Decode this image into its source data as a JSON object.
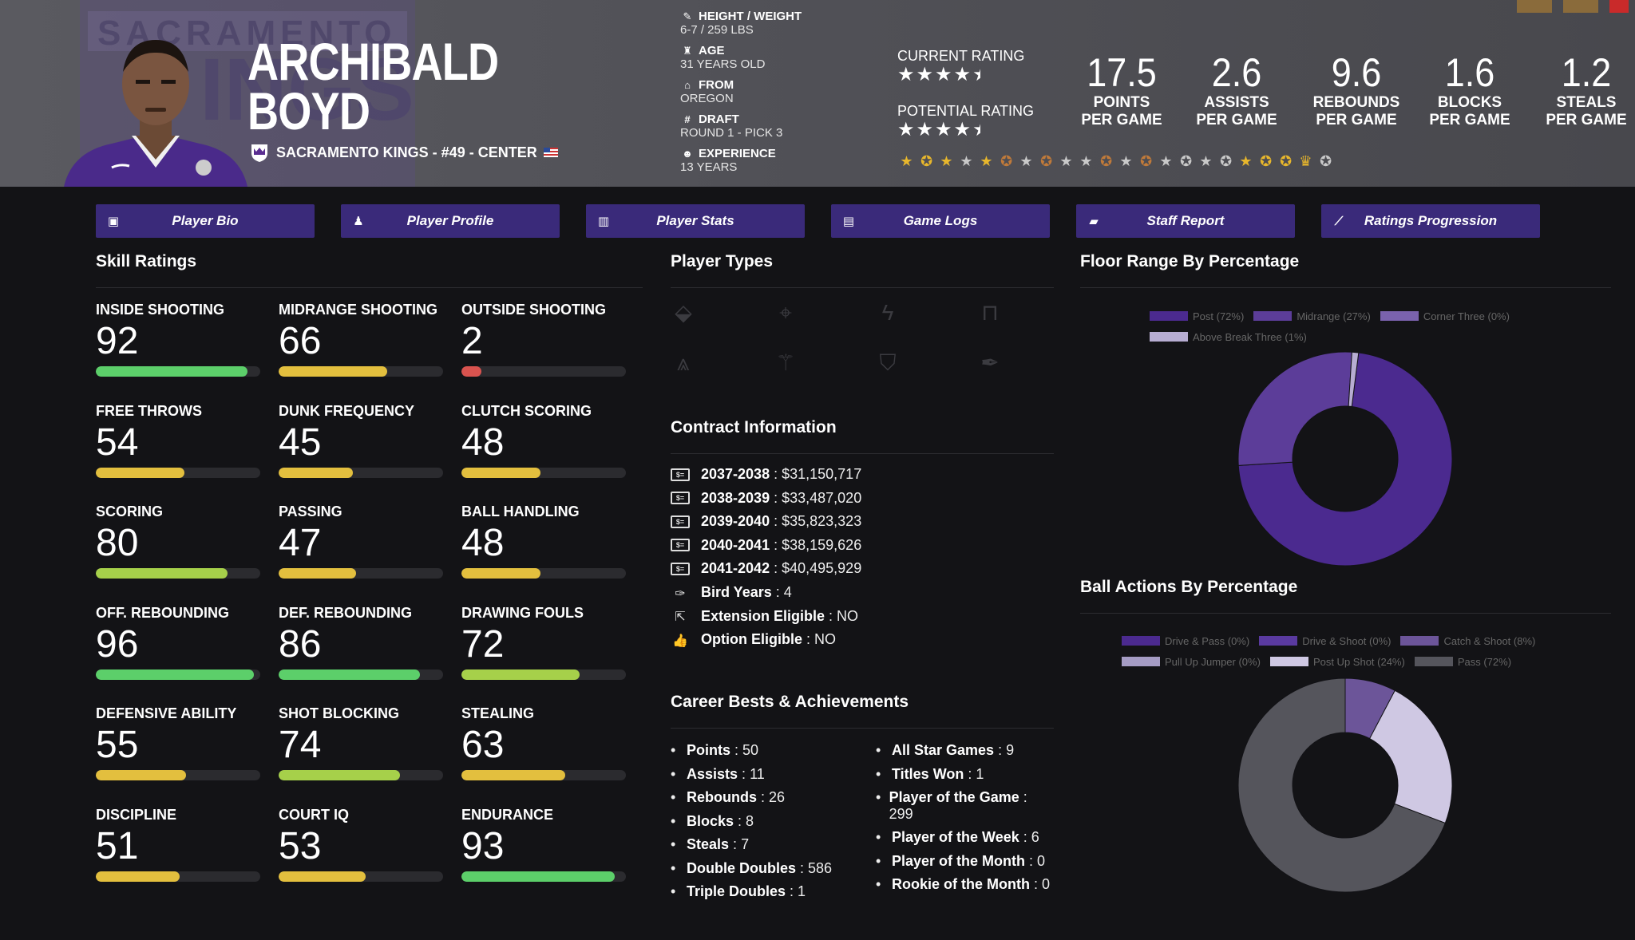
{
  "player": {
    "first_name": "ARCHIBALD",
    "last_name": "BOYD",
    "team_line": "SACRAMENTO KINGS - #49 - CENTER",
    "team_bg_text": "SACRAMENTO"
  },
  "bio": [
    {
      "key": "HEIGHT / WEIGHT",
      "value": "6-7 / 259 LBS",
      "icon": "ruler-icon"
    },
    {
      "key": "AGE",
      "value": "31 YEARS OLD",
      "icon": "birthday-cake-icon"
    },
    {
      "key": "FROM",
      "value": "OREGON",
      "icon": "school-icon"
    },
    {
      "key": "DRAFT",
      "value": "ROUND 1 - PICK 3",
      "icon": "hashtag-icon"
    },
    {
      "key": "EXPERIENCE",
      "value": "13 YEARS",
      "icon": "user-clock-icon"
    }
  ],
  "ratings": {
    "current_label": "CURRENT RATING",
    "current_stars": 4.5,
    "potential_label": "POTENTIAL RATING",
    "potential_stars": 4.5
  },
  "stats": [
    {
      "value": "17.5",
      "line1": "POINTS",
      "line2": "PER GAME"
    },
    {
      "value": "2.6",
      "line1": "ASSISTS",
      "line2": "PER GAME"
    },
    {
      "value": "9.6",
      "line1": "REBOUNDS",
      "line2": "PER GAME"
    },
    {
      "value": "1.6",
      "line1": "BLOCKS",
      "line2": "PER GAME"
    },
    {
      "value": "1.2",
      "line1": "STEALS",
      "line2": "PER GAME"
    }
  ],
  "badges": [
    "gold-star",
    "gold-medal",
    "gold-star",
    "silver-star",
    "gold-star",
    "bronze-medal",
    "silver-star",
    "bronze-medal",
    "silver-star",
    "silver-star",
    "bronze-medal",
    "silver-star",
    "bronze-medal",
    "silver-star",
    "silver-medal",
    "silver-star",
    "silver-medal",
    "gold-star",
    "gold-medal",
    "gold-medal",
    "gold-trophy",
    "silver-medal"
  ],
  "nav": [
    {
      "label": "Player Bio",
      "icon": "id-card-icon"
    },
    {
      "label": "Player Profile",
      "icon": "user-tie-icon"
    },
    {
      "label": "Player Stats",
      "icon": "bar-chart-icon"
    },
    {
      "label": "Game Logs",
      "icon": "clipboard-icon"
    },
    {
      "label": "Staff Report",
      "icon": "comment-icon"
    },
    {
      "label": "Ratings Progression",
      "icon": "line-chart-icon"
    }
  ],
  "sections": {
    "skills": "Skill Ratings",
    "player_types": "Player Types",
    "contract": "Contract Information",
    "career": "Career Bests & Achievements",
    "floor": "Floor Range By Percentage",
    "ball": "Ball Actions By Percentage"
  },
  "skills": [
    {
      "name": "INSIDE SHOOTING",
      "value": 92
    },
    {
      "name": "MIDRANGE SHOOTING",
      "value": 66
    },
    {
      "name": "OUTSIDE SHOOTING",
      "value": 2
    },
    {
      "name": "FREE THROWS",
      "value": 54
    },
    {
      "name": "DUNK FREQUENCY",
      "value": 45
    },
    {
      "name": "CLUTCH SCORING",
      "value": 48
    },
    {
      "name": "SCORING",
      "value": 80
    },
    {
      "name": "PASSING",
      "value": 47
    },
    {
      "name": "BALL HANDLING",
      "value": 48
    },
    {
      "name": "OFF. REBOUNDING",
      "value": 96
    },
    {
      "name": "DEF. REBOUNDING",
      "value": 86
    },
    {
      "name": "DRAWING FOULS",
      "value": 72
    },
    {
      "name": "DEFENSIVE ABILITY",
      "value": 55
    },
    {
      "name": "SHOT BLOCKING",
      "value": 74
    },
    {
      "name": "STEALING",
      "value": 63
    },
    {
      "name": "DISCIPLINE",
      "value": 51
    },
    {
      "name": "COURT IQ",
      "value": 53
    },
    {
      "name": "ENDURANCE",
      "value": 93
    }
  ],
  "player_type_icons": [
    "paint-bucket-icon",
    "crosshair-icon",
    "lightning-icon",
    "paint-roller-icon",
    "mountain-climb-icon",
    "magic-wand-icon",
    "shield-icon",
    "feather-quill-icon"
  ],
  "contract": [
    {
      "key": "2037-2038",
      "value": "$31,150,717",
      "icon": "money-bill-icon"
    },
    {
      "key": "2038-2039",
      "value": "$33,487,020",
      "icon": "money-bill-icon"
    },
    {
      "key": "2039-2040",
      "value": "$35,823,323",
      "icon": "money-bill-icon"
    },
    {
      "key": "2040-2041",
      "value": "$38,159,626",
      "icon": "money-bill-icon"
    },
    {
      "key": "2041-2042",
      "value": "$40,495,929",
      "icon": "money-bill-icon"
    },
    {
      "key": "Bird Years",
      "value": "4",
      "icon": "feather-icon"
    },
    {
      "key": "Extension Eligible",
      "value": "NO",
      "icon": "external-link-icon"
    },
    {
      "key": "Option Eligible",
      "value": "NO",
      "icon": "thumbs-up-icon"
    }
  ],
  "career_left": [
    {
      "key": "Points",
      "value": "50"
    },
    {
      "key": "Assists",
      "value": "11"
    },
    {
      "key": "Rebounds",
      "value": "26"
    },
    {
      "key": "Blocks",
      "value": "8"
    },
    {
      "key": "Steals",
      "value": "7"
    },
    {
      "key": "Double Doubles",
      "value": "586"
    },
    {
      "key": "Triple Doubles",
      "value": "1"
    }
  ],
  "career_right": [
    {
      "key": "All Star Games",
      "value": "9"
    },
    {
      "key": "Titles Won",
      "value": "1"
    },
    {
      "key": "Player of the Game",
      "value": "299"
    },
    {
      "key": "Player of the Week",
      "value": "6"
    },
    {
      "key": "Player of the Month",
      "value": "0"
    },
    {
      "key": "Rookie of the Month",
      "value": "0"
    }
  ],
  "colors": {
    "nav_bg": "#3a2a7a",
    "bar_green": "#5ccf6a",
    "bar_lime": "#a6d04a",
    "bar_yellow": "#e3bf3e",
    "bar_red": "#d9534f"
  },
  "chart_data": [
    {
      "type": "pie",
      "categories": [
        "Post",
        "Midrange",
        "Corner Three",
        "Above Break Three"
      ],
      "legend_labels": [
        "Post (72%)",
        "Midrange (27%)",
        "Corner Three (0%)",
        "Above Break Three (1%)"
      ],
      "values": [
        72,
        27,
        0,
        1
      ],
      "colors": [
        "#4b2a8f",
        "#5c3d99",
        "#7a62ad",
        "#b7add2"
      ],
      "legend": "top"
    },
    {
      "type": "pie",
      "categories": [
        "Drive & Pass",
        "Drive & Shoot",
        "Catch & Shoot",
        "Pull Up Jumper",
        "Post Up Shot",
        "Pass"
      ],
      "legend_labels": [
        "Drive & Pass (0%)",
        "Drive & Shoot (0%)",
        "Catch & Shoot (8%)",
        "Pull Up Jumper (0%)",
        "Post Up Shot (24%)",
        "Pass (72%)"
      ],
      "values": [
        0,
        0,
        8,
        0,
        24,
        72
      ],
      "colors": [
        "#4b2a8f",
        "#5a3aa0",
        "#6c5599",
        "#a59cc4",
        "#cfc8e3",
        "#55555c"
      ],
      "legend": "top"
    }
  ]
}
